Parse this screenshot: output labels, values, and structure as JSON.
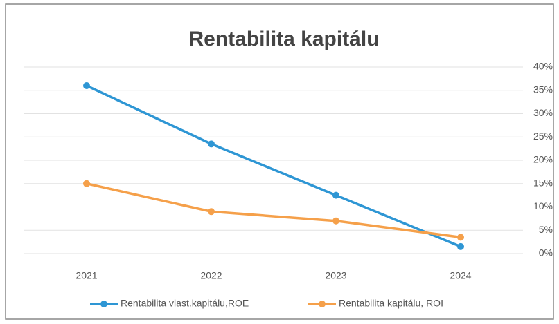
{
  "chart_data": {
    "type": "line",
    "title": "Rentabilita kapitálu",
    "categories": [
      "2021",
      "2022",
      "2023",
      "2024"
    ],
    "series": [
      {
        "name": "Rentabilita vlast.kapitálu,ROE",
        "color": "#2e96d4",
        "values": [
          36,
          23.5,
          12.5,
          1.5
        ]
      },
      {
        "name": "Rentabilita kapitálu, ROI",
        "color": "#f5a04a",
        "values": [
          15,
          9,
          7,
          3.5
        ]
      }
    ],
    "ylim": [
      0,
      40
    ],
    "yticks": [
      {
        "value": 0,
        "label": "0%"
      },
      {
        "value": 5,
        "label": "5%"
      },
      {
        "value": 10,
        "label": "10%"
      },
      {
        "value": 15,
        "label": "15%"
      },
      {
        "value": 20,
        "label": "20%"
      },
      {
        "value": 25,
        "label": "25%"
      },
      {
        "value": 30,
        "label": "30%"
      },
      {
        "value": 35,
        "label": "35%"
      },
      {
        "value": 40,
        "label": "40%"
      }
    ],
    "grid": true,
    "legend": "bottom"
  }
}
